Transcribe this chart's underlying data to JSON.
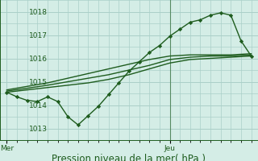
{
  "background_color": "#d4ede6",
  "grid_color": "#aacfc8",
  "line_color": "#1e5c1e",
  "marker_color": "#1e5c1e",
  "ylabel_ticks": [
    1013,
    1014,
    1015,
    1016,
    1017,
    1018
  ],
  "xtick_labels": [
    "Mer",
    "Jeu"
  ],
  "xtick_positions": [
    0,
    48
  ],
  "xlabel": "Pression niveau de la mer( hPa )",
  "xlabel_fontsize": 8.5,
  "tick_fontsize": 6.5,
  "ylim": [
    1012.5,
    1018.5
  ],
  "xlim": [
    -2,
    74
  ],
  "vline_x": 48,
  "series": [
    {
      "x": [
        0,
        6,
        12,
        18,
        24,
        30,
        36,
        42,
        48,
        54,
        60,
        66,
        72
      ],
      "y": [
        1014.55,
        1014.65,
        1014.75,
        1014.85,
        1014.95,
        1015.1,
        1015.3,
        1015.55,
        1015.8,
        1015.95,
        1016.0,
        1016.05,
        1016.1
      ],
      "marker": false,
      "linewidth": 1.0
    },
    {
      "x": [
        0,
        6,
        12,
        18,
        24,
        30,
        36,
        42,
        48,
        54,
        60,
        66,
        72
      ],
      "y": [
        1014.6,
        1014.72,
        1014.85,
        1015.0,
        1015.15,
        1015.3,
        1015.5,
        1015.7,
        1015.95,
        1016.05,
        1016.1,
        1016.1,
        1016.15
      ],
      "marker": false,
      "linewidth": 1.0
    },
    {
      "x": [
        0,
        6,
        12,
        18,
        24,
        30,
        36,
        42,
        48,
        54,
        60,
        66,
        72
      ],
      "y": [
        1014.65,
        1014.8,
        1014.95,
        1015.15,
        1015.35,
        1015.55,
        1015.75,
        1015.95,
        1016.1,
        1016.15,
        1016.15,
        1016.15,
        1016.2
      ],
      "marker": false,
      "linewidth": 1.0
    },
    {
      "x": [
        0,
        3,
        6,
        9,
        12,
        15,
        18,
        21,
        24,
        27,
        30,
        33,
        36,
        39,
        42,
        45,
        48,
        51,
        54,
        57,
        60,
        63,
        66,
        69,
        72
      ],
      "y": [
        1014.55,
        1014.35,
        1014.2,
        1014.15,
        1014.35,
        1014.15,
        1013.5,
        1013.15,
        1013.55,
        1013.95,
        1014.45,
        1014.95,
        1015.45,
        1015.85,
        1016.25,
        1016.55,
        1016.95,
        1017.25,
        1017.55,
        1017.65,
        1017.85,
        1017.95,
        1017.85,
        1016.75,
        1016.1
      ],
      "marker": true,
      "linewidth": 1.0
    }
  ]
}
